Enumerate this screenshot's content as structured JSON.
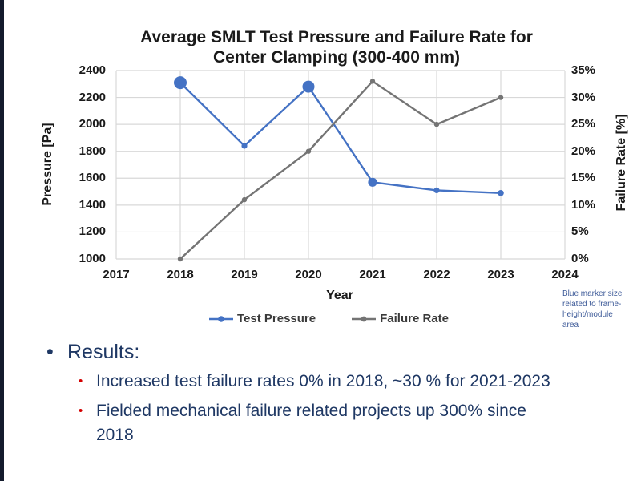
{
  "chart_data": {
    "type": "line",
    "title": "Average SMLT Test Pressure and Failure Rate for Center Clamping (300-400 mm)",
    "title_lines": [
      "Average SMLT Test Pressure and Failure Rate for",
      "Center Clamping (300-400 mm)"
    ],
    "x": [
      2018,
      2019,
      2020,
      2021,
      2022,
      2023
    ],
    "x_axis": {
      "label": "Year",
      "ticks": [
        "2017",
        "2018",
        "2019",
        "2020",
        "2021",
        "2022",
        "2023",
        "2024"
      ],
      "range": [
        2017,
        2024
      ]
    },
    "y_left": {
      "label": "Pressure [Pa]",
      "ticks": [
        "2400",
        "2200",
        "2000",
        "1800",
        "1600",
        "1400",
        "1200",
        "1000"
      ],
      "range": [
        1000,
        2400
      ]
    },
    "y_right": {
      "label": "Failure Rate [%]",
      "ticks": [
        "35%",
        "30%",
        "25%",
        "20%",
        "15%",
        "10%",
        "5%",
        "0%"
      ],
      "range": [
        0,
        35
      ]
    },
    "series": [
      {
        "name": "Test Pressure",
        "axis": "left",
        "color": "#4472C4",
        "values": [
          2310,
          1840,
          2280,
          1570,
          1510,
          1490
        ],
        "marker_radius": [
          8,
          3.6,
          7.5,
          5.6,
          3.6,
          3.8
        ]
      },
      {
        "name": "Failure Rate",
        "axis": "right",
        "color": "#747474",
        "values": [
          0,
          11,
          20,
          33,
          25,
          30
        ],
        "marker_radius": [
          3.2,
          3.2,
          3.2,
          3.2,
          3.2,
          3.2
        ]
      }
    ],
    "grid": true,
    "legend_position": "bottom",
    "note": "Blue marker size\nrelated to frame-\nheight/module\narea"
  },
  "results": {
    "bullet_glyph": "•",
    "heading": "Results:",
    "items": [
      "Increased test failure rates 0% in 2018, ~30 % for 2021-2023",
      "Fielded mechanical failure related projects up 300% since\n2018"
    ]
  },
  "colors": {
    "test_pressure_blue": "#4472C4",
    "failure_rate_gray": "#747474",
    "grid_gray": "#D8D8D8",
    "axis_text": "#1A1A1A",
    "navy_text": "#1F3864",
    "red_bullet": "#D40000",
    "note_blue": "#3D5A98",
    "edge_bar_navy": "#141B2D"
  }
}
